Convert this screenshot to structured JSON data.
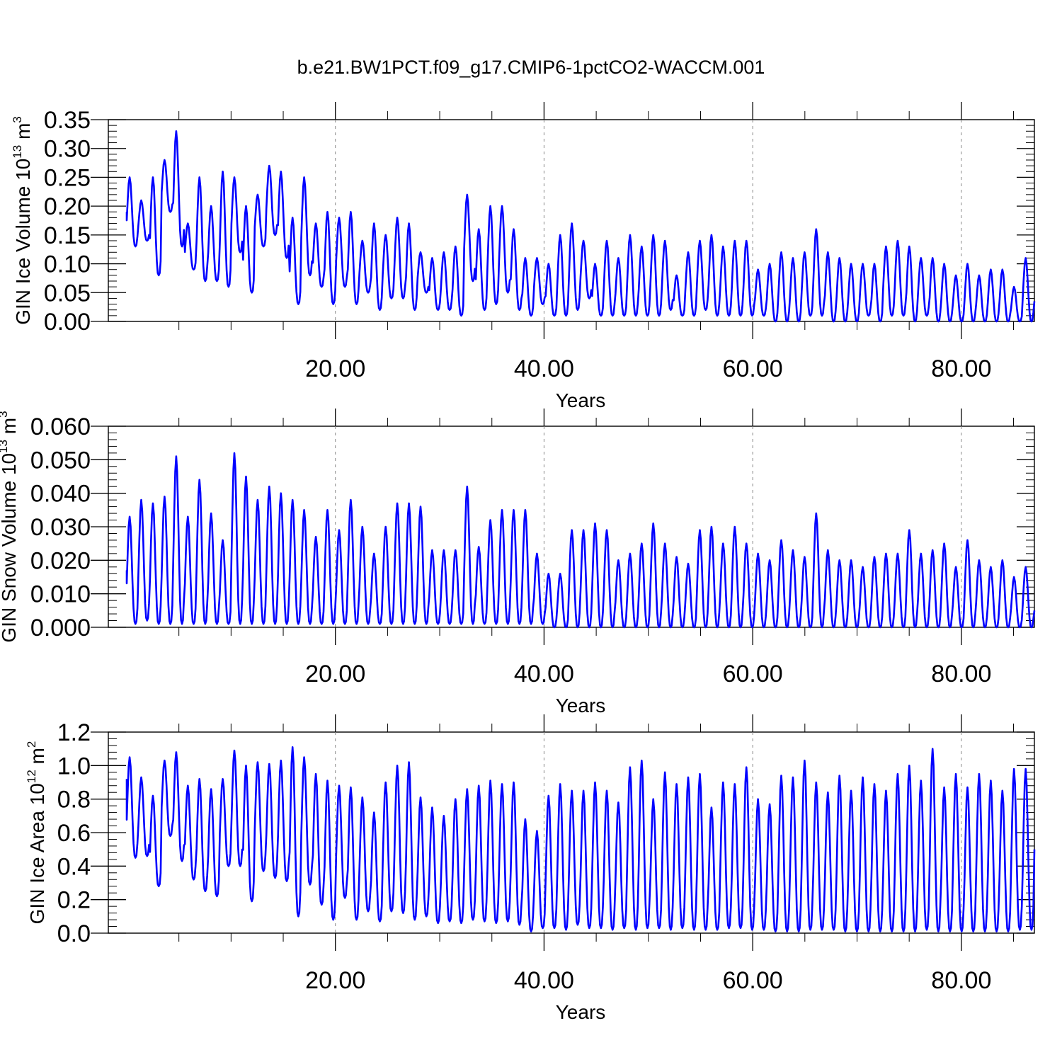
{
  "title": "b.e21.BW1PCT.f09_g17.CMIP6-1pctCO2-WACCM.001",
  "colors": {
    "series": "#0000ff",
    "axis": "#000000",
    "grid": "#8a8a8a"
  },
  "chart_data": [
    {
      "type": "line",
      "ylabel": "GIN Ice Volume 10",
      "ylabel_exp": "13",
      "ylabel_unit": "m",
      "ylabel_unit_exp": "3",
      "xlabel": "Years",
      "xlim": [
        0,
        87
      ],
      "ylim": [
        0,
        0.35
      ],
      "xticks": [
        20,
        40,
        60,
        80
      ],
      "xtick_labels": [
        "20.00",
        "40.00",
        "60.00",
        "80.00"
      ],
      "yticks": [
        0,
        0.05,
        0.1,
        0.15,
        0.2,
        0.25,
        0.3,
        0.35
      ],
      "ytick_labels": [
        "0.00",
        "0.05",
        "0.10",
        "0.15",
        "0.20",
        "0.25",
        "0.30",
        "0.35"
      ],
      "grid": "vertical-dashed",
      "annual_max": [
        0.25,
        0.21,
        0.25,
        0.28,
        0.33,
        0.17,
        0.25,
        0.2,
        0.26,
        0.25,
        0.2,
        0.22,
        0.27,
        0.26,
        0.18,
        0.25,
        0.17,
        0.19,
        0.18,
        0.19,
        0.14,
        0.17,
        0.15,
        0.18,
        0.17,
        0.12,
        0.11,
        0.12,
        0.13,
        0.22,
        0.16,
        0.2,
        0.2,
        0.16,
        0.11,
        0.11,
        0.1,
        0.15,
        0.17,
        0.14,
        0.1,
        0.14,
        0.11,
        0.15,
        0.13,
        0.15,
        0.14,
        0.08,
        0.12,
        0.14,
        0.15,
        0.13,
        0.14,
        0.14,
        0.09,
        0.1,
        0.12,
        0.11,
        0.12,
        0.16,
        0.12,
        0.11,
        0.1,
        0.1,
        0.1,
        0.13,
        0.14,
        0.13,
        0.11,
        0.11,
        0.1,
        0.08,
        0.1,
        0.08,
        0.09,
        0.09,
        0.06,
        0.11
      ],
      "annual_min": [
        0.13,
        0.14,
        0.08,
        0.19,
        0.13,
        0.09,
        0.07,
        0.07,
        0.06,
        0.12,
        0.05,
        0.13,
        0.15,
        0.11,
        0.03,
        0.08,
        0.06,
        0.03,
        0.06,
        0.03,
        0.05,
        0.02,
        0.04,
        0.04,
        0.02,
        0.05,
        0.02,
        0.02,
        0.01,
        0.07,
        0.02,
        0.03,
        0.05,
        0.02,
        0.01,
        0.03,
        0.01,
        0.01,
        0.02,
        0.04,
        0.01,
        0.01,
        0.01,
        0.01,
        0.01,
        0.01,
        0.02,
        0.01,
        0.01,
        0.02,
        0.01,
        0.01,
        0.01,
        0.01,
        0.01,
        0.0,
        0.0,
        0.0,
        0.01,
        0.01,
        0.0,
        0.0,
        0.0,
        0.01,
        0.0,
        0.01,
        0.01,
        0.0,
        0.01,
        0.0,
        0.0,
        0.0,
        0.0,
        0.0,
        0.0,
        0.0,
        0.0,
        0.0
      ],
      "start_value": 0.19,
      "end_value": 0.035
    },
    {
      "type": "line",
      "ylabel": "GIN Snow Volume 10",
      "ylabel_exp": "13",
      "ylabel_unit": "m",
      "ylabel_unit_exp": "3",
      "xlabel": "Years",
      "xlim": [
        0,
        87
      ],
      "ylim": [
        0,
        0.06
      ],
      "xticks": [
        20,
        40,
        60,
        80
      ],
      "xtick_labels": [
        "20.00",
        "40.00",
        "60.00",
        "80.00"
      ],
      "yticks": [
        0,
        0.01,
        0.02,
        0.03,
        0.04,
        0.05,
        0.06
      ],
      "ytick_labels": [
        "0.000",
        "0.010",
        "0.020",
        "0.030",
        "0.040",
        "0.050",
        "0.060"
      ],
      "grid": "vertical-dashed",
      "annual_max": [
        0.033,
        0.038,
        0.037,
        0.039,
        0.051,
        0.033,
        0.044,
        0.034,
        0.026,
        0.052,
        0.045,
        0.038,
        0.042,
        0.04,
        0.038,
        0.035,
        0.027,
        0.035,
        0.029,
        0.038,
        0.03,
        0.022,
        0.03,
        0.037,
        0.037,
        0.036,
        0.023,
        0.023,
        0.023,
        0.042,
        0.024,
        0.032,
        0.035,
        0.035,
        0.035,
        0.022,
        0.016,
        0.016,
        0.029,
        0.029,
        0.031,
        0.029,
        0.02,
        0.022,
        0.025,
        0.031,
        0.025,
        0.021,
        0.019,
        0.029,
        0.03,
        0.025,
        0.03,
        0.025,
        0.022,
        0.02,
        0.026,
        0.023,
        0.021,
        0.034,
        0.023,
        0.02,
        0.02,
        0.018,
        0.021,
        0.022,
        0.022,
        0.029,
        0.022,
        0.023,
        0.025,
        0.018,
        0.026,
        0.02,
        0.018,
        0.02,
        0.015,
        0.018
      ],
      "annual_min": [
        0.001,
        0.002,
        0.001,
        0.001,
        0.001,
        0.001,
        0.001,
        0.001,
        0.001,
        0.001,
        0.001,
        0.001,
        0.001,
        0.001,
        0.001,
        0.001,
        0.001,
        0.001,
        0.001,
        0.001,
        0.001,
        0.001,
        0.001,
        0.001,
        0.001,
        0.001,
        0.001,
        0.001,
        0.001,
        0.001,
        0.001,
        0.001,
        0.001,
        0.001,
        0.001,
        0.001,
        0.0,
        0.0,
        0.0,
        0.0,
        0.0,
        0.0,
        0.0,
        0.0,
        0.0,
        0.0,
        0.0,
        0.0,
        0.0,
        0.0,
        0.0,
        0.0,
        0.0,
        0.0,
        0.0,
        0.0,
        0.0,
        0.0,
        0.0,
        0.0,
        0.0,
        0.0,
        0.0,
        0.0,
        0.0,
        0.0,
        0.0,
        0.0,
        0.0,
        0.0,
        0.0,
        0.0,
        0.0,
        0.0,
        0.0,
        0.0,
        0.0,
        0.0
      ],
      "start_value": 0.017,
      "end_value": 0.005
    },
    {
      "type": "line",
      "ylabel": "GIN Ice Area 10",
      "ylabel_exp": "12",
      "ylabel_unit": "m",
      "ylabel_unit_exp": "2",
      "xlabel": "Years",
      "xlim": [
        0,
        87
      ],
      "ylim": [
        0,
        1.2
      ],
      "xticks": [
        20,
        40,
        60,
        80
      ],
      "xtick_labels": [
        "20.00",
        "40.00",
        "60.00",
        "80.00"
      ],
      "yticks": [
        0,
        0.2,
        0.4,
        0.6,
        0.8,
        1.0,
        1.2
      ],
      "ytick_labels": [
        "0.0",
        "0.2",
        "0.4",
        "0.6",
        "0.8",
        "1.0",
        "1.2"
      ],
      "grid": "vertical-dashed",
      "annual_max": [
        1.05,
        0.93,
        0.82,
        1.03,
        1.08,
        0.88,
        0.92,
        0.86,
        0.92,
        1.09,
        1.0,
        1.02,
        1.01,
        1.03,
        1.11,
        1.05,
        0.95,
        0.91,
        0.88,
        0.87,
        0.81,
        0.72,
        0.9,
        1.0,
        1.02,
        0.81,
        0.75,
        0.7,
        0.8,
        0.86,
        0.88,
        0.91,
        0.89,
        0.9,
        0.68,
        0.61,
        0.82,
        0.89,
        0.85,
        0.85,
        0.9,
        0.85,
        0.78,
        0.99,
        1.03,
        0.8,
        0.96,
        0.89,
        0.93,
        0.95,
        0.75,
        0.9,
        0.89,
        0.99,
        0.8,
        0.77,
        0.94,
        0.93,
        1.03,
        0.9,
        0.84,
        0.94,
        0.85,
        0.93,
        0.89,
        0.85,
        0.95,
        1.0,
        0.91,
        1.1,
        0.87,
        0.95,
        0.87,
        0.95,
        0.91,
        0.85,
        0.98,
        0.98
      ],
      "annual_min": [
        0.45,
        0.46,
        0.28,
        0.58,
        0.43,
        0.32,
        0.25,
        0.22,
        0.4,
        0.4,
        0.19,
        0.37,
        0.33,
        0.31,
        0.1,
        0.29,
        0.17,
        0.08,
        0.21,
        0.08,
        0.13,
        0.07,
        0.13,
        0.12,
        0.08,
        0.1,
        0.06,
        0.07,
        0.06,
        0.08,
        0.07,
        0.06,
        0.07,
        0.05,
        0.01,
        0.03,
        0.03,
        0.02,
        0.05,
        0.03,
        0.03,
        0.02,
        0.03,
        0.02,
        0.03,
        0.03,
        0.02,
        0.03,
        0.02,
        0.02,
        0.02,
        0.03,
        0.03,
        0.02,
        0.02,
        0.01,
        0.01,
        0.01,
        0.02,
        0.02,
        0.02,
        0.01,
        0.01,
        0.01,
        0.01,
        0.01,
        0.01,
        0.01,
        0.02,
        0.01,
        0.01,
        0.01,
        0.01,
        0.01,
        0.01,
        0.01,
        0.02,
        0.02
      ],
      "start_value": 0.92,
      "end_value": 0.5
    }
  ]
}
